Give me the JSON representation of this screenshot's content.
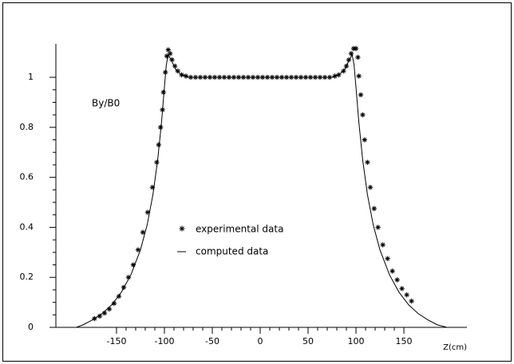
{
  "chart_data": {
    "type": "line",
    "annotations": [
      "By/B0"
    ],
    "x_label": "Z(cm)",
    "xlim": [
      -213.3,
      215.8
    ],
    "ylim": [
      0,
      1.134
    ],
    "xticks": [
      -150,
      -100,
      -50,
      0,
      50,
      100,
      150
    ],
    "yticks": [
      0,
      0.2,
      0.4,
      0.6,
      0.8,
      1
    ],
    "grid": false,
    "series": [
      {
        "name": "experimental data",
        "color": "#000000",
        "style": "markers",
        "x": [
          -173,
          -167.5,
          -162.5,
          -157.5,
          -152.5,
          -147.5,
          -142.5,
          -137.5,
          -132.5,
          -127.5,
          -122.5,
          -117.5,
          -112.5,
          -108,
          -106,
          -104,
          -102,
          -101,
          -99,
          -97.5,
          -96,
          -94,
          -92,
          -89,
          -86,
          -82,
          -77.5,
          -72.5,
          -67.5,
          -62.5,
          -57.5,
          -52.5,
          -47.5,
          -42.5,
          -37.5,
          -32.5,
          -27.5,
          -22.5,
          -17.5,
          -12.5,
          -7.5,
          -2.5,
          2.5,
          7.5,
          12.5,
          17.5,
          22.5,
          27.5,
          32.5,
          37.5,
          42.5,
          47.5,
          52.5,
          57.5,
          62.5,
          67.5,
          72.5,
          78,
          82,
          87,
          90,
          92.5,
          95,
          97.5,
          100,
          102,
          103,
          105,
          107,
          109,
          112,
          115,
          119,
          123,
          128,
          133,
          138,
          143,
          148,
          153,
          158
        ],
        "values": [
          0.035,
          0.045,
          0.057,
          0.073,
          0.096,
          0.124,
          0.16,
          0.2,
          0.25,
          0.31,
          0.38,
          0.46,
          0.56,
          0.66,
          0.73,
          0.8,
          0.87,
          0.94,
          1.02,
          1.085,
          1.11,
          1.095,
          1.07,
          1.045,
          1.025,
          1.01,
          1.005,
          1.0,
          1.0,
          1.0,
          1.0,
          1.0,
          1.0,
          1.0,
          1.0,
          1.0,
          1.0,
          1.0,
          1.0,
          1.0,
          1.0,
          1.0,
          1.0,
          1.0,
          1.0,
          1.0,
          1.0,
          1.0,
          1.0,
          1.0,
          1.0,
          1.0,
          1.0,
          1.0,
          1.0,
          1.0,
          1.0,
          1.005,
          1.01,
          1.025,
          1.045,
          1.07,
          1.095,
          1.115,
          1.115,
          1.08,
          1.005,
          0.93,
          0.85,
          0.75,
          0.66,
          0.56,
          0.475,
          0.4,
          0.33,
          0.275,
          0.225,
          0.19,
          0.155,
          0.13,
          0.105
        ]
      },
      {
        "name": "computed data",
        "color": "#000000",
        "style": "line",
        "x": [
          -192,
          -185,
          -175,
          -165,
          -155,
          -145,
          -135,
          -125,
          -118,
          -112,
          -107,
          -103,
          -100,
          -98,
          -96,
          -93,
          -88,
          -82,
          -75,
          75,
          82,
          88,
          93,
          96,
          98,
          100,
          103,
          107,
          112,
          118,
          125,
          135,
          145,
          155,
          165,
          175,
          185,
          195
        ],
        "values": [
          0,
          0.01,
          0.03,
          0.055,
          0.09,
          0.14,
          0.21,
          0.31,
          0.41,
          0.53,
          0.67,
          0.82,
          0.96,
          1.05,
          1.09,
          1.07,
          1.03,
          1.01,
          1.0,
          1.0,
          1.01,
          1.03,
          1.07,
          1.09,
          1.05,
          0.96,
          0.82,
          0.67,
          0.53,
          0.41,
          0.31,
          0.21,
          0.14,
          0.09,
          0.055,
          0.03,
          0.01,
          0
        ]
      }
    ]
  }
}
